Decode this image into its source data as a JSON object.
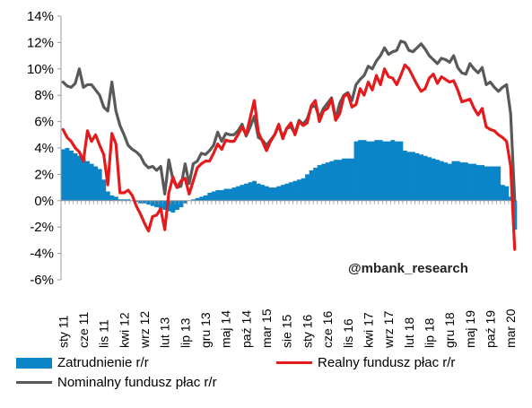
{
  "chart_data": {
    "type": "bar+line",
    "x": [
      "sty 11",
      "lut 11",
      "mar 11",
      "kwi 11",
      "maj 11",
      "cze 11",
      "lip 11",
      "sie 11",
      "wrz 11",
      "paź 11",
      "lis 11",
      "gru 11",
      "sty 12",
      "lut 12",
      "mar 12",
      "kwi 12",
      "maj 12",
      "cze 12",
      "lip 12",
      "sie 12",
      "wrz 12",
      "paź 12",
      "lis 12",
      "gru 12",
      "sty 13",
      "lut 13",
      "mar 13",
      "kwi 13",
      "maj 13",
      "cze 13",
      "lip 13",
      "sie 13",
      "wrz 13",
      "paź 13",
      "lis 13",
      "gru 13",
      "sty 14",
      "lut 14",
      "mar 14",
      "kwi 14",
      "maj 14",
      "cze 14",
      "lip 14",
      "sie 14",
      "wrz 14",
      "paź 14",
      "lis 14",
      "gru 14",
      "sty 15",
      "lut 15",
      "mar 15",
      "kwi 15",
      "maj 15",
      "cze 15",
      "lip 15",
      "sie 15",
      "wrz 15",
      "paź 15",
      "lis 15",
      "gru 15",
      "sty 16",
      "lut 16",
      "mar 16",
      "kwi 16",
      "maj 16",
      "cze 16",
      "lip 16",
      "sie 16",
      "wrz 16",
      "paź 16",
      "lis 16",
      "gru 16",
      "sty 17",
      "lut 17",
      "mar 17",
      "kwi 17",
      "maj 17",
      "cze 17",
      "lip 17",
      "sie 17",
      "wrz 17",
      "paź 17",
      "lis 17",
      "gru 17",
      "sty 18",
      "lut 18",
      "mar 18",
      "kwi 18",
      "maj 18",
      "cze 18",
      "lip 18",
      "sie 18",
      "wrz 18",
      "paź 18",
      "lis 18",
      "gru 18",
      "sty 19",
      "lut 19",
      "mar 19",
      "kwi 19",
      "maj 19",
      "cze 19",
      "lip 19",
      "sie 19",
      "wrz 19",
      "paź 19",
      "lis 19",
      "gru 19",
      "sty 20",
      "lut 20",
      "mar 20",
      "kwi 20"
    ],
    "tick_labels": [
      "sty 11",
      "cze 11",
      "lis 11",
      "kwi 12",
      "wrz 12",
      "lut 13",
      "lip 13",
      "gru 13",
      "maj 14",
      "paź 14",
      "mar 15",
      "sie 15",
      "sty 16",
      "cze 16",
      "lis 16",
      "kwi 17",
      "wrz 17",
      "lut 18",
      "lip 18",
      "gru 18",
      "maj 19",
      "paź 19",
      "mar 20"
    ],
    "tick_indices": [
      0,
      5,
      10,
      15,
      20,
      25,
      30,
      35,
      40,
      45,
      50,
      55,
      60,
      65,
      70,
      75,
      80,
      85,
      90,
      95,
      100,
      105,
      110
    ],
    "ylim": [
      -6,
      14
    ],
    "yticks": [
      -6,
      -4,
      -2,
      0,
      2,
      4,
      6,
      8,
      10,
      12,
      14
    ],
    "ytick_labels": [
      "-6%",
      "-4%",
      "-2%",
      "0%",
      "2%",
      "4%",
      "6%",
      "8%",
      "10%",
      "12%",
      "14%"
    ],
    "grid": false,
    "legend_position": "bottom",
    "annotation": "@mbank_research",
    "series": [
      {
        "name": "Zatrudnienie r/r",
        "kind": "bar",
        "color": "#0a85c8",
        "values": [
          3.9,
          4.0,
          3.8,
          3.6,
          3.4,
          3.2,
          3.0,
          2.8,
          2.6,
          2.4,
          1.6,
          0.7,
          0.4,
          0.3,
          0.1,
          0.1,
          0.1,
          0.0,
          -0.1,
          -0.2,
          -0.2,
          -0.3,
          -0.4,
          -0.5,
          -0.6,
          -0.7,
          -0.8,
          -0.9,
          -0.7,
          -0.5,
          -0.2,
          0.0,
          0.1,
          0.2,
          0.3,
          0.4,
          0.6,
          0.7,
          0.8,
          0.8,
          0.9,
          0.9,
          1.0,
          1.1,
          1.2,
          1.3,
          1.4,
          1.5,
          1.3,
          1.2,
          1.1,
          1.0,
          1.0,
          1.1,
          1.2,
          1.3,
          1.4,
          1.5,
          1.6,
          1.7,
          2.0,
          2.3,
          2.5,
          2.7,
          2.8,
          2.9,
          3.0,
          3.1,
          3.1,
          3.2,
          3.2,
          3.2,
          4.5,
          4.6,
          4.6,
          4.5,
          4.5,
          4.6,
          4.6,
          4.5,
          4.5,
          4.6,
          4.5,
          4.5,
          3.8,
          3.7,
          3.7,
          3.6,
          3.5,
          3.4,
          3.3,
          3.2,
          3.1,
          3.0,
          2.9,
          2.8,
          3.0,
          3.0,
          2.9,
          2.9,
          2.8,
          2.8,
          2.7,
          2.7,
          2.6,
          2.6,
          2.6,
          2.6,
          1.2,
          1.1,
          0.3,
          -2.2
        ]
      },
      {
        "name": "Realny fundusz płac r/r",
        "kind": "line",
        "color": "#e41a1c",
        "values": [
          5.4,
          4.8,
          4.5,
          4.0,
          3.7,
          3.0,
          5.3,
          4.5,
          5.0,
          4.2,
          3.5,
          1.2,
          5.1,
          4.3,
          0.6,
          0.6,
          0.8,
          0.4,
          -0.4,
          -1.0,
          -1.7,
          -2.3,
          -1.2,
          -1.1,
          -0.6,
          -2.2,
          0.6,
          1.8,
          1.0,
          1.5,
          1.7,
          0.5,
          1.5,
          2.5,
          2.8,
          3.0,
          3.0,
          3.6,
          4.3,
          3.9,
          4.6,
          4.5,
          4.5,
          5.0,
          5.6,
          5.0,
          6.3,
          7.6,
          5.2,
          4.5,
          3.8,
          4.5,
          5.0,
          5.8,
          4.7,
          5.5,
          5.9,
          5.0,
          6.0,
          5.7,
          5.9,
          7.2,
          7.6,
          6.0,
          6.8,
          7.0,
          7.7,
          6.1,
          6.6,
          7.9,
          8.1,
          7.1,
          7.3,
          8.5,
          8.0,
          9.0,
          8.4,
          9.5,
          8.8,
          10.0,
          9.4,
          9.3,
          8.8,
          9.5,
          10.3,
          10.0,
          9.4,
          8.8,
          8.3,
          8.5,
          9.3,
          9.6,
          8.9,
          9.4,
          9.2,
          9.0,
          9.1,
          8.4,
          7.5,
          7.6,
          7.7,
          7.0,
          6.5,
          7.0,
          5.6,
          5.4,
          5.3,
          5.0,
          4.8,
          4.5,
          2.6,
          -3.7
        ]
      },
      {
        "name": "Nominalny fundusz płac r/r",
        "kind": "line",
        "color": "#595959",
        "values": [
          9.0,
          8.7,
          8.6,
          8.9,
          10.0,
          8.6,
          8.8,
          8.8,
          8.4,
          8.0,
          7.1,
          6.8,
          9.0,
          6.8,
          5.7,
          5.0,
          4.2,
          3.9,
          3.7,
          3.4,
          2.8,
          2.5,
          2.6,
          2.3,
          2.6,
          0.5,
          3.1,
          1.6,
          1.0,
          1.1,
          2.8,
          1.3,
          2.8,
          3.0,
          3.6,
          3.5,
          3.8,
          4.2,
          5.2,
          4.5,
          5.1,
          5.0,
          5.0,
          5.3,
          5.8,
          4.9,
          5.6,
          6.4,
          4.8,
          4.6,
          4.2,
          4.6,
          5.0,
          5.7,
          4.8,
          5.5,
          5.6,
          5.1,
          6.1,
          5.8,
          6.2,
          7.1,
          7.2,
          6.3,
          7.0,
          7.4,
          7.8,
          6.2,
          7.4,
          8.0,
          8.2,
          7.6,
          8.8,
          9.2,
          9.5,
          10.2,
          10.0,
          10.6,
          11.0,
          11.6,
          11.1,
          11.3,
          11.4,
          12.1,
          12.0,
          11.4,
          11.3,
          11.6,
          11.9,
          11.5,
          11.0,
          10.7,
          10.4,
          10.8,
          10.7,
          10.5,
          11.0,
          10.1,
          9.7,
          9.6,
          10.4,
          10.0,
          9.7,
          10.1,
          8.8,
          9.0,
          8.6,
          8.3,
          8.6,
          8.8,
          6.6,
          0.0
        ]
      }
    ]
  }
}
